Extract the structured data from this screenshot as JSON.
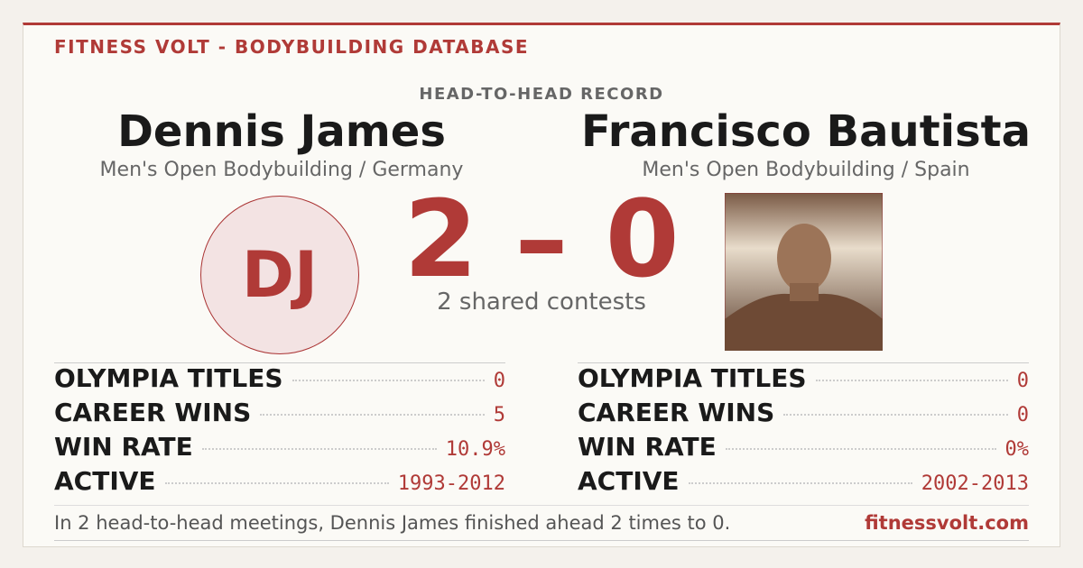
{
  "header": {
    "brand": "FITNESS VOLT - BODYBUILDING DATABASE",
    "record_label": "HEAD-TO-HEAD RECORD"
  },
  "athletes": [
    {
      "name": "Dennis James",
      "division": "Men's Open Bodybuilding / Germany",
      "initials": "DJ",
      "stats": [
        {
          "label": "OLYMPIA TITLES",
          "value": "0"
        },
        {
          "label": "CAREER WINS",
          "value": "5"
        },
        {
          "label": "WIN RATE",
          "value": "10.9%"
        },
        {
          "label": "ACTIVE",
          "value": "1993-2012"
        }
      ]
    },
    {
      "name": "Francisco Bautista",
      "division": "Men's Open Bodybuilding / Spain",
      "stats": [
        {
          "label": "OLYMPIA TITLES",
          "value": "0"
        },
        {
          "label": "CAREER WINS",
          "value": "0"
        },
        {
          "label": "WIN RATE",
          "value": "0%"
        },
        {
          "label": "ACTIVE",
          "value": "2002-2013"
        }
      ]
    }
  ],
  "score": "2 – 0",
  "shared": "2 shared contests",
  "footer": {
    "summary": "In 2 head-to-head meetings, Dennis James finished ahead 2 times to 0.",
    "site": "fitnessvolt.com"
  }
}
